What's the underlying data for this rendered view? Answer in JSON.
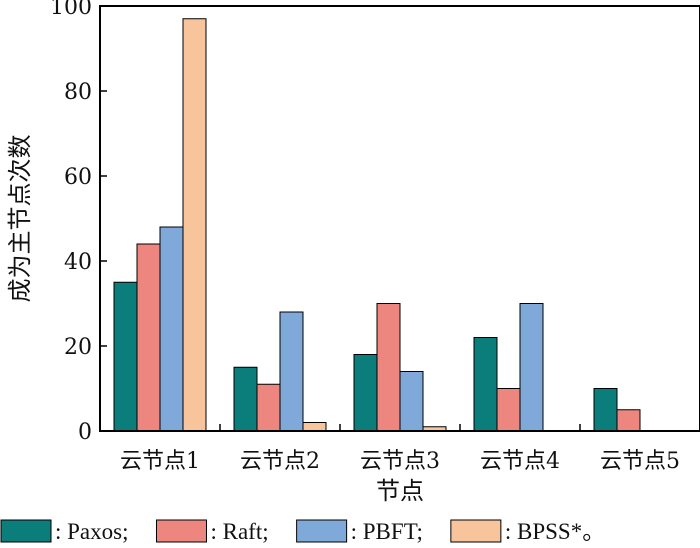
{
  "chart_data": {
    "type": "bar",
    "title": "",
    "xlabel": "节点",
    "ylabel": "成为主节点次数",
    "ylim": [
      0,
      100
    ],
    "yticks": [
      0,
      20,
      40,
      60,
      80,
      100
    ],
    "grid": false,
    "legend_position": "bottom",
    "categories": [
      "云节点1",
      "云节点2",
      "云节点3",
      "云节点4",
      "云节点5"
    ],
    "series": [
      {
        "name": ": Paxos;",
        "color": "#0b7d7a",
        "values": [
          35,
          15,
          18,
          22,
          10
        ]
      },
      {
        "name": ": Raft;",
        "color": "#ee8680",
        "values": [
          44,
          11,
          30,
          10,
          5
        ]
      },
      {
        "name": ": PBFT;",
        "color": "#7fa9d8",
        "values": [
          48,
          28,
          14,
          30,
          0
        ]
      },
      {
        "name": ": BPSS*。",
        "color": "#f7c49c",
        "values": [
          97,
          2,
          1,
          0,
          0
        ]
      }
    ]
  }
}
